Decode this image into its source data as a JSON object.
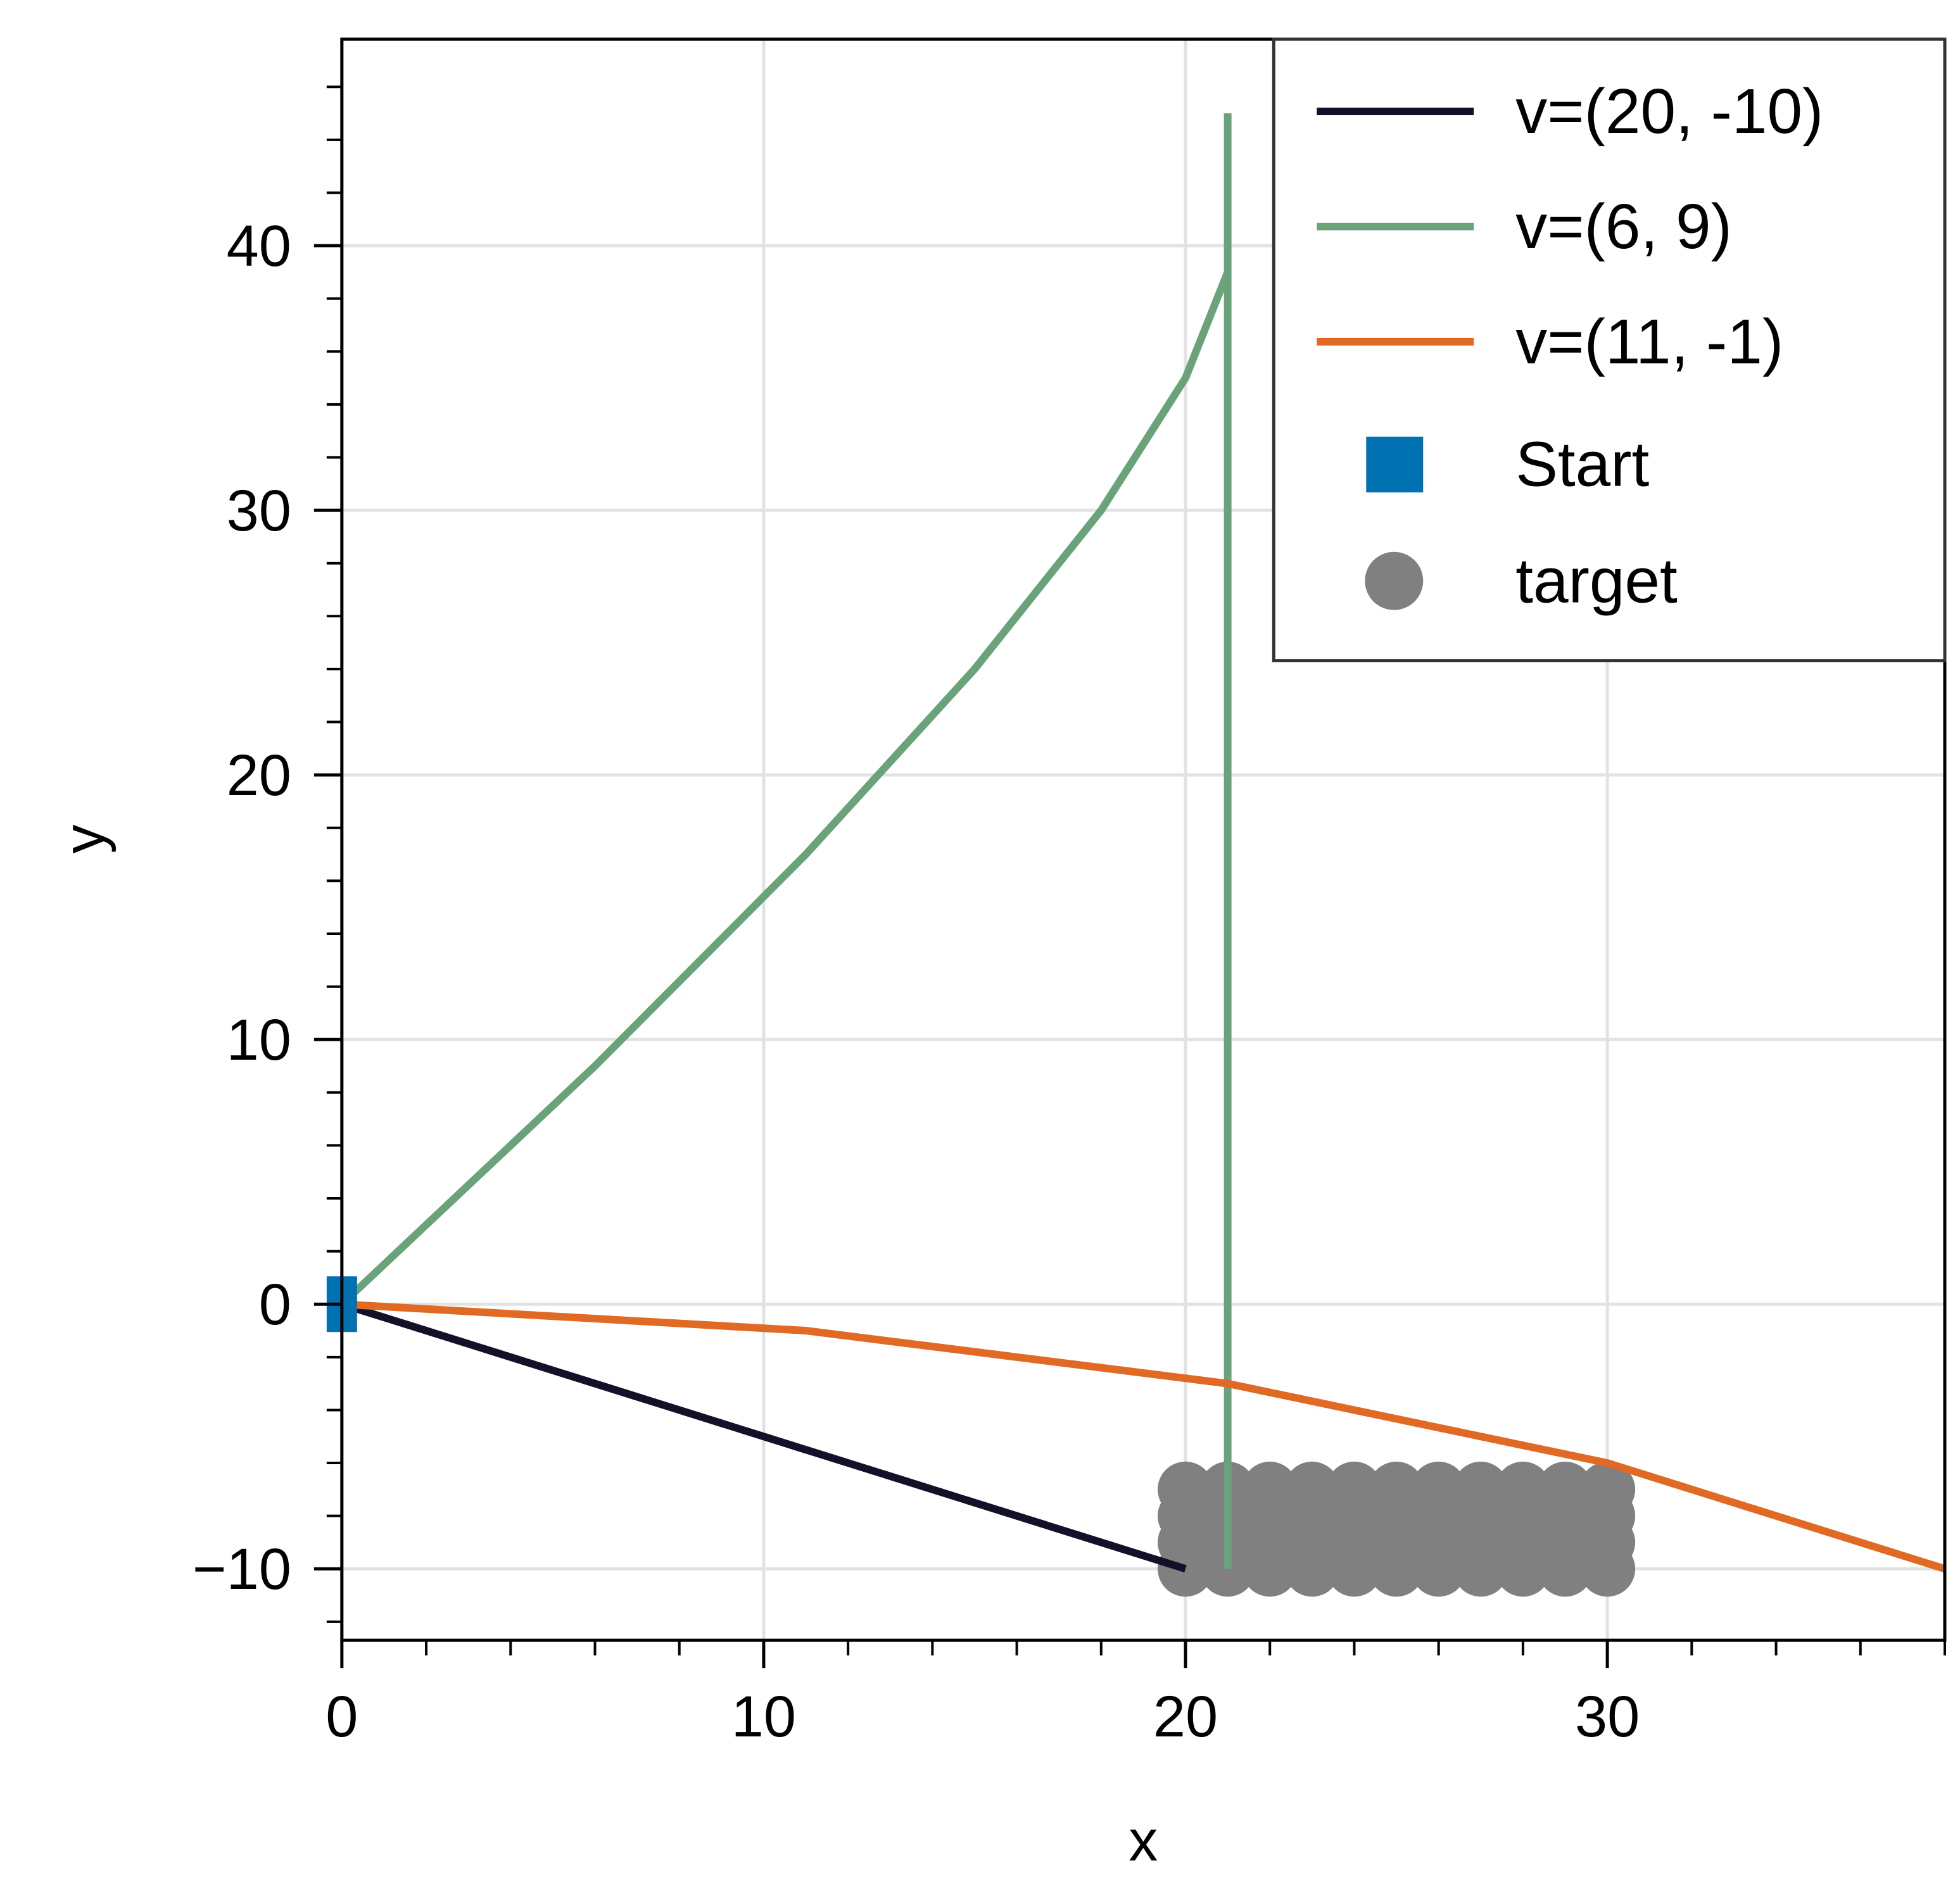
{
  "chart_data": {
    "type": "line",
    "title": "",
    "xlabel": "x",
    "ylabel": "y",
    "xlim": [
      0,
      38
    ],
    "ylim": [
      -12.7,
      47.8
    ],
    "xticks": [
      0,
      10,
      20,
      30
    ],
    "xtick_labels": [
      "0",
      "10",
      "20",
      "30"
    ],
    "yticks": [
      -10,
      0,
      10,
      20,
      30,
      40
    ],
    "ytick_labels": [
      "−10",
      "0",
      "10",
      "20",
      "30",
      "40"
    ],
    "grid": true,
    "legend_position": "top-right",
    "series": [
      {
        "name": "v=(20, -10)",
        "kind": "line",
        "color": "#150f28",
        "x": [
          0,
          20
        ],
        "y": [
          0,
          -10
        ]
      },
      {
        "name": "v=(6, 9)",
        "kind": "line",
        "color": "#6aa27a",
        "x": [
          0,
          6,
          11,
          15,
          18,
          20,
          21,
          21,
          21,
          21,
          21,
          21,
          21,
          21,
          21,
          21,
          21,
          21,
          21,
          21,
          21
        ],
        "y": [
          0,
          9,
          17,
          24,
          30,
          35,
          39,
          42,
          44,
          45,
          45,
          44,
          42,
          39,
          35,
          30,
          24,
          17,
          9,
          0,
          -10
        ]
      },
      {
        "name": "v=(11, -1)",
        "kind": "line",
        "color": "#e06a24",
        "x": [
          0,
          11,
          21,
          30,
          38
        ],
        "y": [
          0,
          -1,
          -3,
          -6,
          -10
        ]
      },
      {
        "name": "Start",
        "kind": "square",
        "color": "#0072b2",
        "x": [
          0
        ],
        "y": [
          0
        ]
      },
      {
        "name": "target",
        "kind": "circle",
        "color": "#808080",
        "x_range": [
          20,
          30
        ],
        "y_range": [
          -10,
          -7
        ]
      }
    ]
  }
}
